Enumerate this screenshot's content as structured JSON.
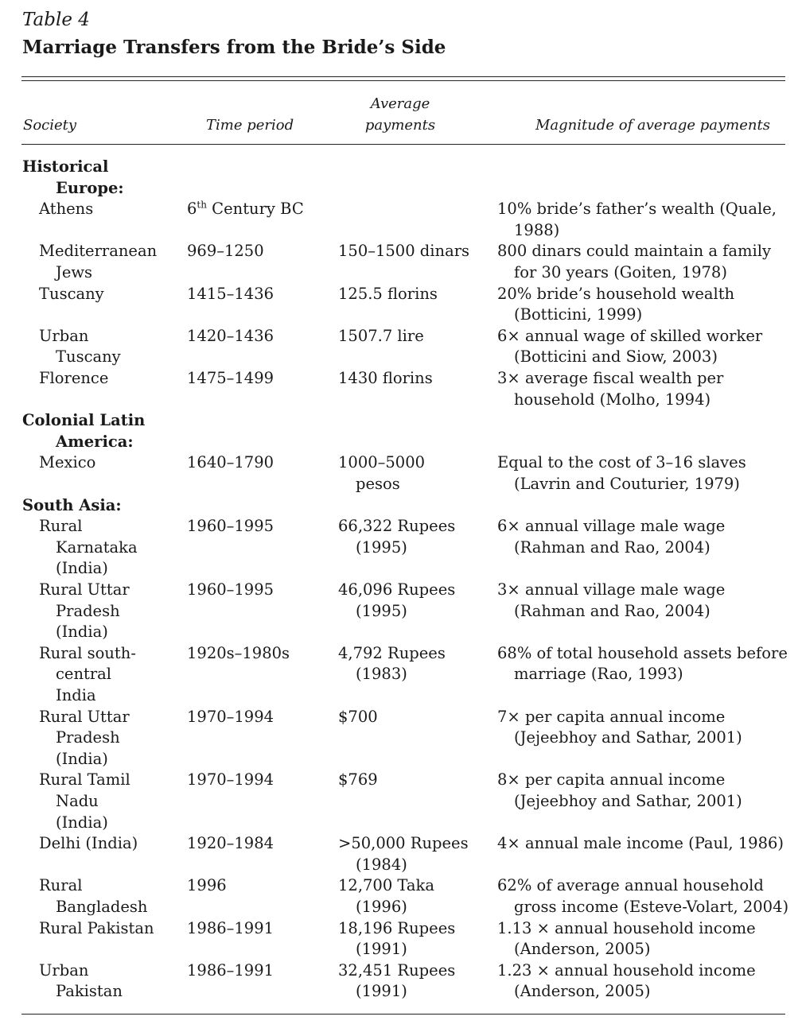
{
  "table": {
    "label": "Table 4",
    "title": "Marriage Transfers from the Bride’s Side",
    "headers": {
      "society": "Society",
      "period": "Time period",
      "payments": [
        "Average",
        "payments"
      ],
      "magnitude": "Magnitude of average payments"
    },
    "groups": [
      {
        "heading": [
          "Historical",
          "Europe:"
        ],
        "rows": [
          {
            "society": [
              "Athens"
            ],
            "period_prefix": "6",
            "period_sup": "th",
            "period": " Century BC",
            "payments": [],
            "magnitude": [
              "10% bride’s father’s wealth (Quale,",
              "1988)"
            ]
          },
          {
            "society": [
              "Mediterranean",
              "Jews"
            ],
            "period": "969–1250",
            "payments": [
              "150–1500 dinars"
            ],
            "magnitude": [
              "800 dinars could maintain a family",
              "for 30 years (Goiten, 1978)"
            ]
          },
          {
            "society": [
              "Tuscany"
            ],
            "period": "1415–1436",
            "payments": [
              "125.5 florins"
            ],
            "magnitude": [
              "20% bride’s household wealth",
              "(Botticini, 1999)"
            ]
          },
          {
            "society": [
              "Urban",
              "Tuscany"
            ],
            "period": "1420–1436",
            "payments": [
              "1507.7 lire"
            ],
            "magnitude": [
              "6× annual wage of skilled worker",
              "(Botticini and Siow, 2003)"
            ]
          },
          {
            "society": [
              "Florence"
            ],
            "period": "1475–1499",
            "payments": [
              "1430 florins"
            ],
            "magnitude": [
              "3× average fiscal wealth per",
              "household (Molho, 1994)"
            ]
          }
        ]
      },
      {
        "heading": [
          "Colonial Latin",
          "America:"
        ],
        "rows": [
          {
            "society": [
              "Mexico"
            ],
            "period": "1640–1790",
            "payments": [
              "1000–5000",
              "pesos"
            ],
            "magnitude": [
              "Equal to the cost of 3–16 slaves",
              "(Lavrin and Couturier, 1979)"
            ]
          }
        ]
      },
      {
        "heading": [
          "South Asia:"
        ],
        "rows": [
          {
            "society": [
              "Rural",
              "Karnataka",
              "(India)"
            ],
            "period": "1960–1995",
            "payments": [
              "66,322 Rupees",
              "(1995)"
            ],
            "magnitude": [
              "6× annual village male wage",
              "(Rahman and Rao, 2004)"
            ]
          },
          {
            "society": [
              "Rural Uttar",
              "Pradesh",
              "(India)"
            ],
            "period": "1960–1995",
            "payments": [
              "46,096 Rupees",
              "(1995)"
            ],
            "magnitude": [
              "3× annual village male wage",
              "(Rahman and Rao, 2004)"
            ]
          },
          {
            "society": [
              "Rural south-",
              "central",
              "India"
            ],
            "period": "1920s–1980s",
            "payments": [
              "4,792 Rupees",
              "(1983)"
            ],
            "magnitude": [
              "68% of total household assets before",
              "marriage (Rao, 1993)"
            ]
          },
          {
            "society": [
              "Rural Uttar",
              "Pradesh",
              "(India)"
            ],
            "period": "1970–1994",
            "payments": [
              "$700"
            ],
            "magnitude": [
              "7× per capita annual income",
              "(Jejeebhoy and Sathar, 2001)"
            ]
          },
          {
            "society": [
              "Rural Tamil",
              "Nadu",
              "(India)"
            ],
            "period": "1970–1994",
            "payments": [
              "$769"
            ],
            "magnitude": [
              "8× per capita annual income",
              "(Jejeebhoy and Sathar, 2001)"
            ]
          },
          {
            "society": [
              "Delhi (India)"
            ],
            "period": "1920–1984",
            "payments": [
              ">50,000 Rupees",
              "(1984)"
            ],
            "magnitude": [
              "4× annual male income (Paul, 1986)"
            ]
          },
          {
            "society": [
              "Rural",
              "Bangladesh"
            ],
            "period": "1996",
            "payments": [
              "12,700 Taka",
              "(1996)"
            ],
            "magnitude": [
              "62% of average annual household",
              "gross income (Esteve-Volart, 2004)"
            ]
          },
          {
            "society": [
              "Rural Pakistan"
            ],
            "period": "1986–1991",
            "payments": [
              "18,196 Rupees",
              "(1991)"
            ],
            "magnitude": [
              "1.13 × annual household income",
              "(Anderson, 2005)"
            ]
          },
          {
            "society": [
              "Urban",
              "Pakistan"
            ],
            "period": "1986–1991",
            "payments": [
              "32,451 Rupees",
              "(1991)"
            ],
            "magnitude": [
              "1.23 × annual household income",
              "(Anderson, 2005)"
            ]
          }
        ]
      }
    ]
  }
}
